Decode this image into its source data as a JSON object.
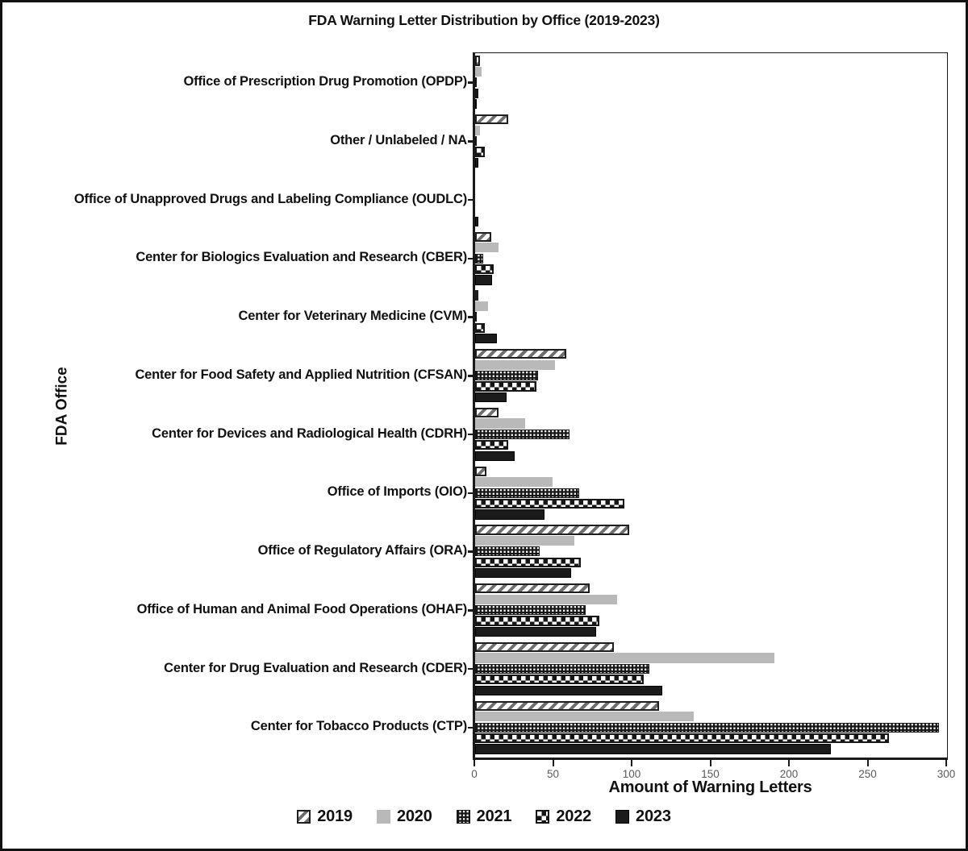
{
  "figure": {
    "title": "FDA Warning Letter Distribution by Office (2019-2023)",
    "x_axis_title": "Amount of Warning Letters",
    "y_axis_title": "FDA Office"
  },
  "chart_data": {
    "type": "bar",
    "orientation": "horizontal",
    "title": "FDA Warning Letter Distribution by Office (2019-2023)",
    "xlabel": "Amount of Warning Letters",
    "ylabel": "FDA Office",
    "xlim": [
      0,
      300
    ],
    "xticks": [
      0,
      50,
      100,
      150,
      200,
      250,
      300
    ],
    "grid": false,
    "legend_position": "bottom",
    "categories": [
      "Office of Prescription Drug Promotion (OPDP)",
      "Other / Unlabeled / NA",
      "Office of Unapproved Drugs and Labeling Compliance (OUDLC)",
      "Center for Biologics Evaluation and Research (CBER)",
      "Center for Veterinary Medicine (CVM)",
      "Center for Food Safety and Applied Nutrition (CFSAN)",
      "Center for Devices and Radiological Health (CDRH)",
      "Office of Imports (OIO)",
      "Office of Regulatory Affairs (ORA)",
      "Office of Human and Animal Food Operations (OHAF)",
      "Center for Drug Evaluation and Research (CDER)",
      "Center for Tobacco Products (CTP)"
    ],
    "series": [
      {
        "name": "2019",
        "pattern": "diagonal-hatch",
        "values": [
          3,
          21,
          0,
          10,
          2,
          58,
          15,
          7,
          98,
          73,
          88,
          117
        ]
      },
      {
        "name": "2020",
        "pattern": "solid-light-gray",
        "color": "#b9b9b9",
        "values": [
          4,
          3,
          0,
          15,
          8,
          51,
          32,
          49,
          63,
          90,
          190,
          139
        ]
      },
      {
        "name": "2021",
        "pattern": "dense-checker",
        "values": [
          1,
          1,
          0,
          5,
          1,
          40,
          60,
          66,
          41,
          70,
          111,
          295
        ]
      },
      {
        "name": "2022",
        "pattern": "checkerboard",
        "values": [
          2,
          6,
          0,
          12,
          6,
          39,
          21,
          95,
          67,
          79,
          107,
          263
        ]
      },
      {
        "name": "2023",
        "pattern": "solid-black",
        "color": "#1b1b1b",
        "values": [
          1,
          2,
          2,
          11,
          14,
          20,
          25,
          44,
          61,
          77,
          119,
          226
        ]
      }
    ],
    "colors": {
      "bar_black": "#1b1b1b",
      "bar_gray": "#b9b9b9",
      "hatch_stripe": "#6e6e6e",
      "axis": "#1a1a1a",
      "tick_label": "#595959"
    }
  }
}
